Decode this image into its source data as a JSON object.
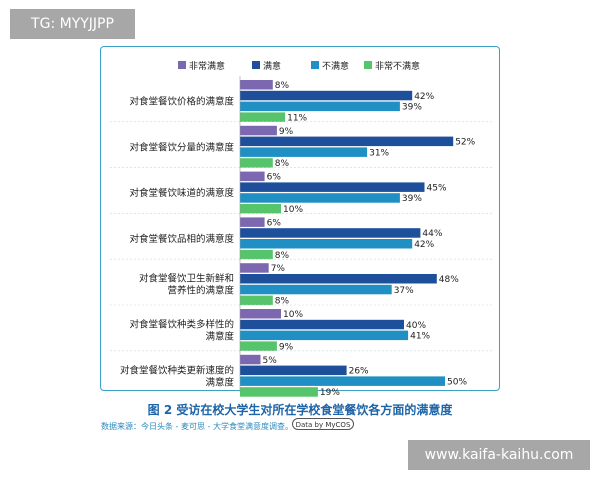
{
  "watermark_top": "TG: MYYJJPP",
  "watermark_bottom": "www.kaifa-kaihu.com",
  "caption": "图 2  受访在校大学生对所在学校食堂餐饮各方面的满意度",
  "source": "数据来源：今日头条 - 麦可思 - 大学食堂满意度调查。",
  "logo_text": "Data by MyCOS",
  "chart_data": {
    "type": "bar",
    "orientation": "horizontal",
    "legend_position": "top",
    "grid": false,
    "categories": [
      [
        "对食堂餐饮价格的满意度"
      ],
      [
        "对食堂餐饮分量的满意度"
      ],
      [
        "对食堂餐饮味道的满意度"
      ],
      [
        "对食堂餐饮品相的满意度"
      ],
      [
        "对食堂餐饮卫生新鲜和",
        "营养性的满意度"
      ],
      [
        "对食堂餐饮种类多样性的",
        "满意度"
      ],
      [
        "对食堂餐饮种类更新速度的",
        "满意度"
      ]
    ],
    "series": [
      {
        "name": "非常满意",
        "color": "#7b68b0",
        "values": [
          8,
          9,
          6,
          6,
          7,
          10,
          5
        ]
      },
      {
        "name": "满意",
        "color": "#1d4f9a",
        "values": [
          42,
          52,
          45,
          44,
          48,
          40,
          26
        ]
      },
      {
        "name": "不满意",
        "color": "#1f8fc4",
        "values": [
          39,
          31,
          39,
          42,
          37,
          41,
          50
        ]
      },
      {
        "name": "非常不满意",
        "color": "#56c46b",
        "values": [
          11,
          8,
          10,
          8,
          8,
          9,
          19
        ]
      }
    ],
    "value_suffix": "%"
  }
}
